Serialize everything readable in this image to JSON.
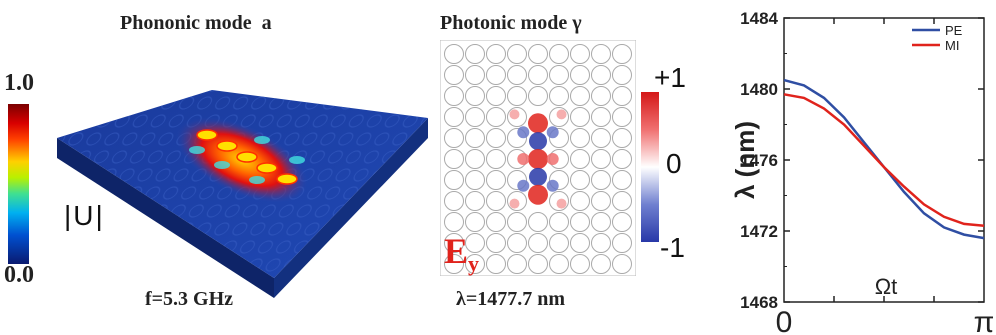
{
  "phononic": {
    "title": "Phononic mode  a",
    "caption": "f=5.3 GHz",
    "colorbar": {
      "max": "1.0",
      "min": "0.0",
      "quantity": "|U|"
    }
  },
  "photonic": {
    "title": "Photonic mode γ",
    "caption": "λ=1477.7 nm",
    "field_label": "E",
    "field_subscript": "y",
    "colorbar": {
      "max": "+1",
      "mid": "0",
      "min": "-1"
    }
  },
  "colors": {
    "accent_red": "#e0231c",
    "PE": "#2f4ea3",
    "MI": "#e0231c"
  },
  "chart_data": {
    "type": "line",
    "xlabel": "Ωt",
    "ylabel": "λ (nm)",
    "xlim": [
      0,
      3.1416
    ],
    "ylim": [
      1468,
      1484
    ],
    "xtick_labels": [
      "0",
      "π"
    ],
    "ytick_labels": [
      "1468",
      "1472",
      "1476",
      "1480",
      "1484"
    ],
    "legend_position": "top-right",
    "series": [
      {
        "name": "PE",
        "color": "#2f4ea3",
        "x": [
          0,
          0.314,
          0.628,
          0.942,
          1.257,
          1.571,
          1.885,
          2.199,
          2.513,
          2.827,
          3.1416
        ],
        "y": [
          1480.5,
          1480.2,
          1479.5,
          1478.4,
          1477.0,
          1475.6,
          1474.2,
          1473.0,
          1472.2,
          1471.8,
          1471.6
        ]
      },
      {
        "name": "MI",
        "color": "#e0231c",
        "x": [
          0,
          0.314,
          0.628,
          0.942,
          1.257,
          1.571,
          1.885,
          2.199,
          2.513,
          2.827,
          3.1416
        ],
        "y": [
          1479.7,
          1479.5,
          1478.9,
          1478.0,
          1476.8,
          1475.6,
          1474.5,
          1473.5,
          1472.8,
          1472.4,
          1472.3
        ]
      }
    ]
  }
}
